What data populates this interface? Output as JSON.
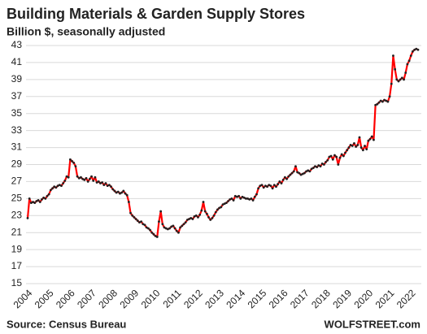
{
  "chart_data": {
    "type": "line",
    "title": "Building Materials & Garden Supply Stores",
    "subtitle": "Billion $, seasonally adjusted",
    "source": "Source: Census Bureau",
    "credit": "WOLFSTREET.com",
    "categories": [
      "2004",
      null,
      null,
      null,
      null,
      null,
      null,
      null,
      null,
      null,
      null,
      null,
      "2005",
      null,
      null,
      null,
      null,
      null,
      null,
      null,
      null,
      null,
      null,
      null,
      "2006",
      null,
      null,
      null,
      null,
      null,
      null,
      null,
      null,
      null,
      null,
      null,
      "2007",
      null,
      null,
      null,
      null,
      null,
      null,
      null,
      null,
      null,
      null,
      null,
      "2008",
      null,
      null,
      null,
      null,
      null,
      null,
      null,
      null,
      null,
      null,
      null,
      "2009",
      null,
      null,
      null,
      null,
      null,
      null,
      null,
      null,
      null,
      null,
      null,
      "2010",
      null,
      null,
      null,
      null,
      null,
      null,
      null,
      null,
      null,
      null,
      null,
      "2011",
      null,
      null,
      null,
      null,
      null,
      null,
      null,
      null,
      null,
      null,
      null,
      "2012",
      null,
      null,
      null,
      null,
      null,
      null,
      null,
      null,
      null,
      null,
      null,
      "2013",
      null,
      null,
      null,
      null,
      null,
      null,
      null,
      null,
      null,
      null,
      null,
      "2014",
      null,
      null,
      null,
      null,
      null,
      null,
      null,
      null,
      null,
      null,
      null,
      "2015",
      null,
      null,
      null,
      null,
      null,
      null,
      null,
      null,
      null,
      null,
      null,
      "2016",
      null,
      null,
      null,
      null,
      null,
      null,
      null,
      null,
      null,
      null,
      null,
      "2017",
      null,
      null,
      null,
      null,
      null,
      null,
      null,
      null,
      null,
      null,
      null,
      "2018",
      null,
      null,
      null,
      null,
      null,
      null,
      null,
      null,
      null,
      null,
      null,
      "2019",
      null,
      null,
      null,
      null,
      null,
      null,
      null,
      null,
      null,
      null,
      null,
      "2020",
      null,
      null,
      null,
      null,
      null,
      null,
      null,
      null,
      null,
      null,
      null,
      "2021",
      null,
      null,
      null,
      null,
      null,
      null,
      null,
      null,
      null,
      null,
      null,
      "2022",
      null,
      null,
      null,
      null
    ],
    "series": [
      {
        "color": "#ff0000",
        "marker_color": "#222222",
        "values": [
          22.7,
          25.0,
          24.5,
          24.6,
          24.5,
          24.7,
          24.8,
          24.6,
          24.9,
          25.1,
          25.0,
          25.3,
          25.5,
          26.0,
          26.2,
          26.4,
          26.3,
          26.5,
          26.6,
          26.5,
          26.8,
          27.1,
          27.6,
          27.5,
          29.6,
          29.4,
          29.2,
          28.8,
          27.6,
          27.4,
          27.5,
          27.3,
          27.2,
          27.4,
          27.0,
          27.3,
          27.6,
          27.1,
          27.5,
          26.9,
          27.0,
          26.8,
          26.9,
          26.6,
          26.8,
          26.5,
          26.6,
          26.4,
          26.1,
          25.9,
          25.7,
          25.8,
          25.6,
          25.7,
          25.9,
          25.6,
          25.4,
          24.6,
          23.3,
          23.0,
          22.8,
          22.6,
          22.4,
          22.2,
          22.3,
          22.0,
          21.9,
          21.6,
          21.5,
          21.3,
          21.0,
          20.8,
          20.6,
          20.5,
          22.3,
          23.5,
          22.0,
          21.6,
          21.5,
          21.4,
          21.5,
          21.7,
          21.8,
          21.5,
          21.2,
          21.0,
          21.6,
          21.8,
          22.0,
          22.2,
          22.5,
          22.6,
          22.7,
          22.6,
          22.9,
          23.0,
          22.8,
          23.1,
          23.6,
          24.6,
          23.5,
          23.2,
          22.8,
          22.5,
          22.7,
          23.0,
          23.4,
          23.7,
          23.9,
          24.0,
          24.3,
          24.4,
          24.5,
          24.7,
          24.9,
          25.0,
          24.8,
          25.3,
          25.2,
          25.3,
          25.0,
          25.2,
          25.1,
          25.0,
          25.0,
          24.9,
          25.0,
          24.8,
          25.2,
          25.5,
          26.2,
          26.5,
          26.6,
          26.3,
          26.5,
          26.4,
          26.6,
          26.5,
          26.2,
          26.6,
          26.4,
          26.7,
          27.0,
          26.8,
          27.2,
          27.5,
          27.3,
          27.6,
          27.8,
          28.0,
          28.2,
          28.8,
          28.1,
          28.0,
          27.8,
          27.9,
          28.0,
          28.2,
          28.3,
          28.2,
          28.5,
          28.6,
          28.8,
          28.7,
          28.9,
          28.8,
          29.1,
          29.0,
          29.3,
          29.5,
          29.9,
          30.0,
          29.6,
          30.1,
          29.9,
          29.0,
          29.8,
          30.2,
          30.0,
          30.4,
          30.7,
          31.0,
          31.3,
          31.2,
          31.5,
          31.1,
          31.3,
          32.2,
          31.0,
          30.7,
          31.2,
          30.8,
          31.8,
          32.0,
          32.3,
          31.9,
          36.0,
          36.1,
          36.3,
          36.5,
          36.4,
          36.6,
          36.5,
          36.4,
          37.0,
          38.5,
          41.8,
          40.2,
          39.0,
          38.8,
          39.0,
          39.2,
          39.0,
          39.8,
          40.8,
          41.2,
          41.8,
          42.3,
          42.5,
          42.6,
          42.5
        ]
      }
    ],
    "ylim": [
      15,
      43
    ],
    "yticks": [
      15,
      17,
      19,
      21,
      23,
      25,
      27,
      29,
      31,
      33,
      35,
      37,
      39,
      41,
      43
    ],
    "grid": true
  }
}
